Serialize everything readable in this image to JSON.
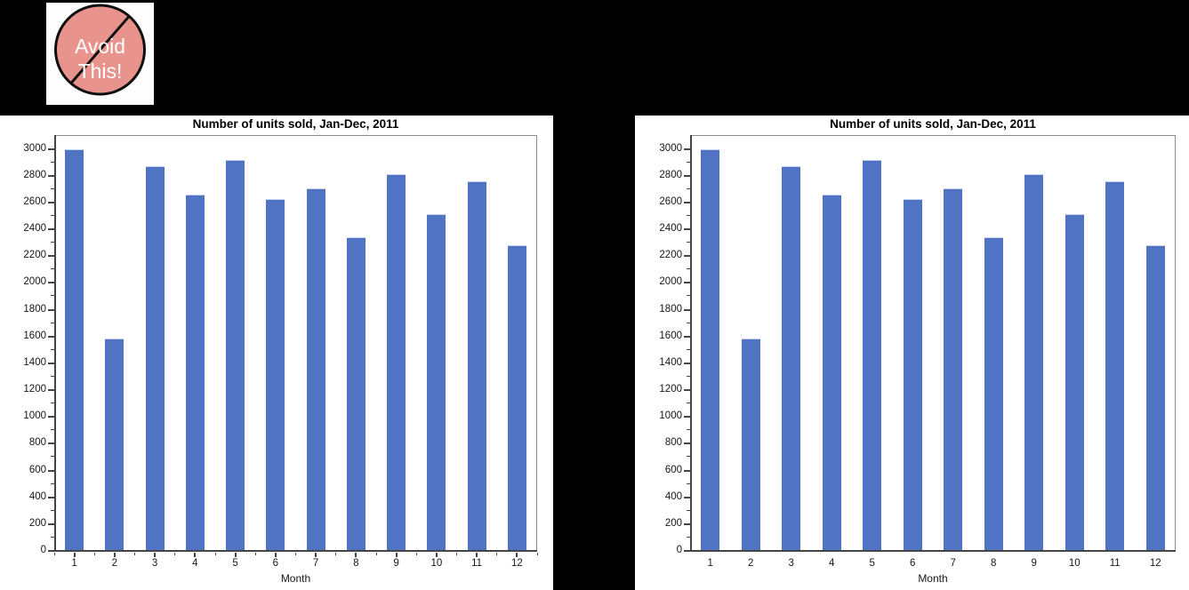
{
  "page": {
    "background": "#000000"
  },
  "badge": {
    "line1": "Avoid",
    "line2": "This!",
    "circle_color": "#e8948d",
    "outline_color": "#0e0e0e",
    "text_color": "#ffffff"
  },
  "chart_data": [
    {
      "type": "bar",
      "title": "Number of units sold, Jan-Dec, 2011",
      "xlabel": "Month",
      "ylabel": "",
      "categories": [
        "1",
        "2",
        "3",
        "4",
        "5",
        "6",
        "7",
        "8",
        "9",
        "10",
        "11",
        "12"
      ],
      "values": [
        3005,
        1590,
        2875,
        2665,
        2925,
        2630,
        2710,
        2345,
        2815,
        2520,
        2765,
        2290
      ],
      "ylim": [
        0,
        3000
      ],
      "y_major_step": 200,
      "y_minor_step": 100,
      "x_axis_has_ticks": true,
      "grid": false,
      "legend": "none",
      "bar_color": "#5173c3"
    },
    {
      "type": "bar",
      "title": "Number of units sold, Jan-Dec, 2011",
      "xlabel": "Month",
      "ylabel": "",
      "categories": [
        "1",
        "2",
        "3",
        "4",
        "5",
        "6",
        "7",
        "8",
        "9",
        "10",
        "11",
        "12"
      ],
      "values": [
        3005,
        1590,
        2875,
        2665,
        2925,
        2630,
        2710,
        2345,
        2815,
        2520,
        2765,
        2290
      ],
      "ylim": [
        0,
        3000
      ],
      "y_major_step": 200,
      "y_minor_step": 100,
      "x_axis_has_ticks": false,
      "grid": false,
      "legend": "none",
      "bar_color": "#5173c3"
    }
  ]
}
